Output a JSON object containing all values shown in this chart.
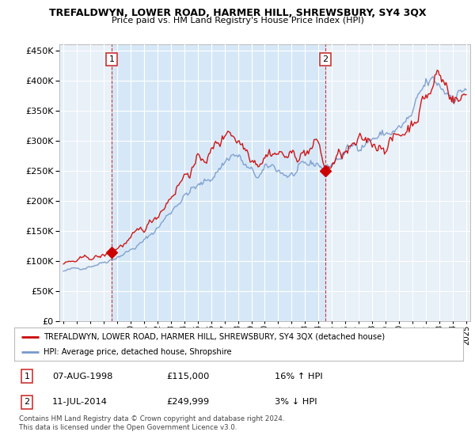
{
  "title": "TREFALDWYN, LOWER ROAD, HARMER HILL, SHREWSBURY, SY4 3QX",
  "subtitle": "Price paid vs. HM Land Registry's House Price Index (HPI)",
  "legend_line1": "TREFALDWYN, LOWER ROAD, HARMER HILL, SHREWSBURY, SY4 3QX (detached house)",
  "legend_line2": "HPI: Average price, detached house, Shropshire",
  "footer": "Contains HM Land Registry data © Crown copyright and database right 2024.\nThis data is licensed under the Open Government Licence v3.0.",
  "sale1_date": "07-AUG-1998",
  "sale1_price": "£115,000",
  "sale1_hpi": "16% ↑ HPI",
  "sale1_year": 1998.583,
  "sale1_value": 115000,
  "sale2_date": "11-JUL-2014",
  "sale2_price": "£249,999",
  "sale2_hpi": "3% ↓ HPI",
  "sale2_year": 2014.5,
  "sale2_value": 249999,
  "red_color": "#cc0000",
  "blue_color": "#7799cc",
  "shade_color": "#d6e8f7",
  "bg_color": "#e8f0f8",
  "grid_color": "#ffffff",
  "box_color": "#cc3333",
  "ylim": [
    0,
    460000
  ],
  "yticks": [
    0,
    50000,
    100000,
    150000,
    200000,
    250000,
    300000,
    350000,
    400000,
    450000
  ],
  "xlim_start": 1994.7,
  "xlim_end": 2025.3
}
